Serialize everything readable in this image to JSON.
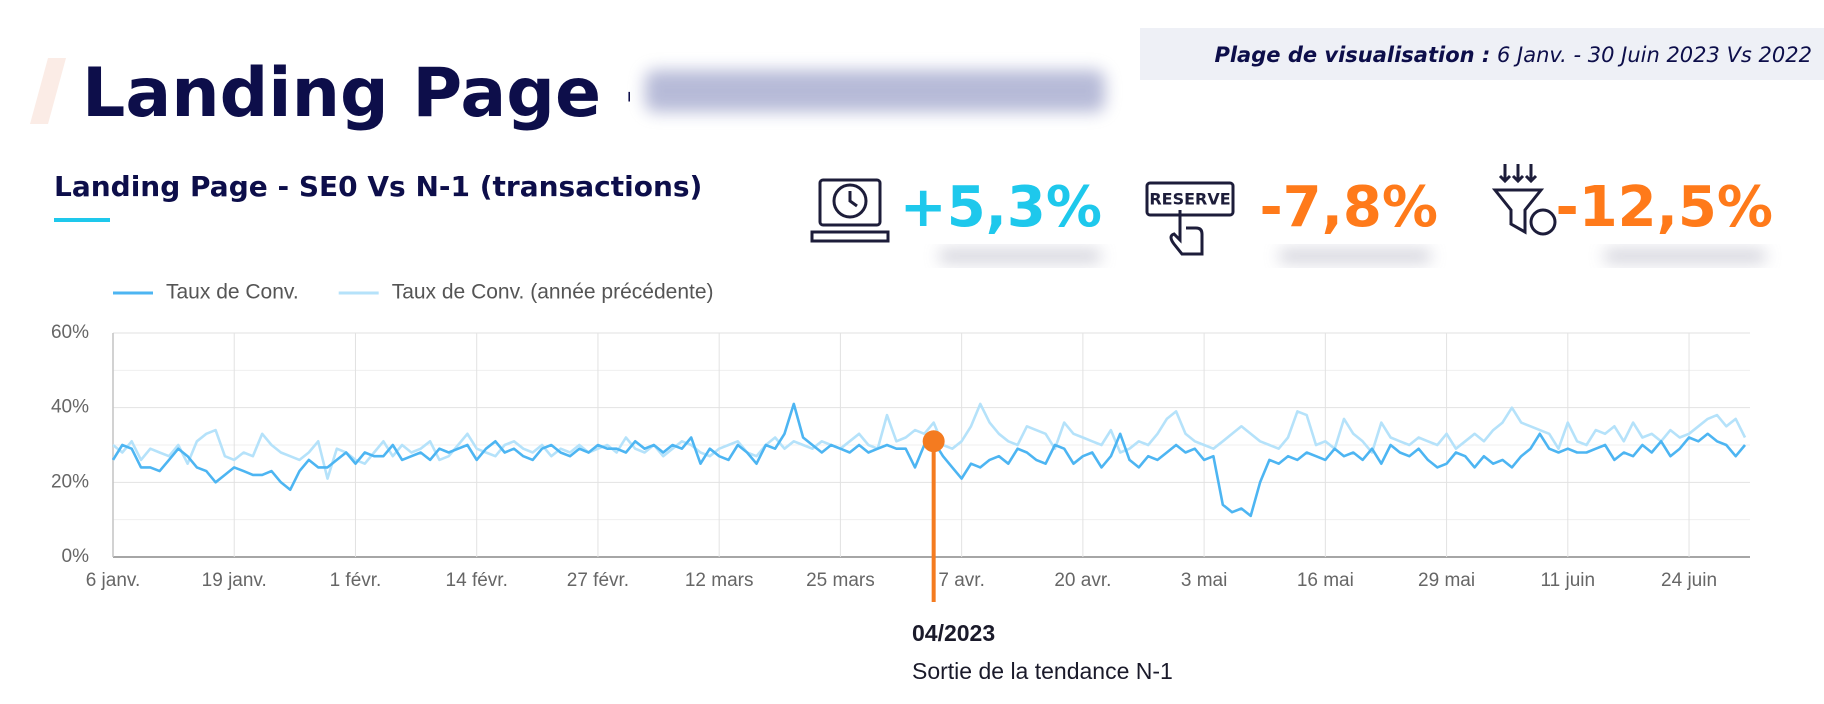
{
  "header": {
    "title": "Landing Page -",
    "range_label": "Plage de visualisation :",
    "range_value": "6 Janv. - 30 Juin 2023 Vs 2022"
  },
  "section_title": "Landing Page - SE0 Vs N-1 (transactions)",
  "kpis": [
    {
      "value": "+5,3%",
      "color": "#1ec8ec"
    },
    {
      "value": "-7,8%",
      "color": "#ff7a1a",
      "icon_text": "RESERVE"
    },
    {
      "value": "-12,5%",
      "color": "#ff7a1a"
    }
  ],
  "chart_data": {
    "type": "line",
    "grid": true,
    "legend": "top-left",
    "ylim": [
      0,
      60
    ],
    "yticks": [
      {
        "value": 0,
        "label": "0%"
      },
      {
        "value": 20,
        "label": "20%"
      },
      {
        "value": 40,
        "label": "40%"
      },
      {
        "value": 60,
        "label": "60%"
      }
    ],
    "categories": [
      "6 janv.",
      null,
      null,
      null,
      null,
      null,
      null,
      null,
      null,
      null,
      null,
      null,
      null,
      "19 janv.",
      null,
      null,
      null,
      null,
      null,
      null,
      null,
      null,
      null,
      null,
      null,
      null,
      "1 févr.",
      null,
      null,
      null,
      null,
      null,
      null,
      null,
      null,
      null,
      null,
      null,
      null,
      "14 févr.",
      null,
      null,
      null,
      null,
      null,
      null,
      null,
      null,
      null,
      null,
      null,
      null,
      "27 févr.",
      null,
      null,
      null,
      null,
      null,
      null,
      null,
      null,
      null,
      null,
      null,
      null,
      "12 mars",
      null,
      null,
      null,
      null,
      null,
      null,
      null,
      null,
      null,
      null,
      null,
      null,
      "25 mars",
      null,
      null,
      null,
      null,
      null,
      null,
      null,
      null,
      null,
      null,
      null,
      null,
      "7 avr.",
      null,
      null,
      null,
      null,
      null,
      null,
      null,
      null,
      null,
      null,
      null,
      null,
      "20 avr.",
      null,
      null,
      null,
      null,
      null,
      null,
      null,
      null,
      null,
      null,
      null,
      null,
      "3 mai",
      null,
      null,
      null,
      null,
      null,
      null,
      null,
      null,
      null,
      null,
      null,
      null,
      "16 mai",
      null,
      null,
      null,
      null,
      null,
      null,
      null,
      null,
      null,
      null,
      null,
      null,
      "29 mai",
      null,
      null,
      null,
      null,
      null,
      null,
      null,
      null,
      null,
      null,
      null,
      null,
      "11 juin",
      null,
      null,
      null,
      null,
      null,
      null,
      null,
      null,
      null,
      null,
      null,
      null,
      "24 juin",
      null,
      null,
      null,
      null,
      null,
      null
    ],
    "series": [
      {
        "name": "Taux de Conv.",
        "color": "#4db5f2",
        "values": [
          26,
          30,
          29,
          24,
          24,
          23,
          26,
          29,
          27,
          24,
          23,
          20,
          22,
          24,
          23,
          22,
          22,
          23,
          20,
          18,
          23,
          26,
          24,
          24,
          26,
          28,
          25,
          28,
          27,
          27,
          30,
          26,
          27,
          28,
          26,
          29,
          28,
          29,
          30,
          26,
          29,
          31,
          28,
          29,
          27,
          26,
          29,
          30,
          28,
          27,
          29,
          28,
          30,
          29,
          29,
          28,
          31,
          29,
          30,
          28,
          30,
          29,
          32,
          25,
          29,
          27,
          26,
          30,
          28,
          25,
          30,
          29,
          33,
          41,
          32,
          30,
          28,
          30,
          29,
          28,
          30,
          28,
          29,
          30,
          29,
          29,
          24,
          30,
          31,
          27,
          24,
          21,
          25,
          24,
          26,
          27,
          25,
          29,
          28,
          26,
          25,
          30,
          29,
          25,
          27,
          28,
          24,
          27,
          33,
          26,
          24,
          27,
          26,
          28,
          30,
          28,
          29,
          26,
          27,
          14,
          12,
          13,
          11,
          20,
          26,
          25,
          27,
          26,
          28,
          27,
          26,
          29,
          27,
          28,
          26,
          29,
          25,
          30,
          28,
          27,
          29,
          26,
          24,
          25,
          28,
          27,
          24,
          27,
          25,
          26,
          24,
          27,
          29,
          33,
          29,
          28,
          29,
          28,
          28,
          29,
          30,
          26,
          28,
          27,
          30,
          28,
          31,
          27,
          29,
          32,
          31,
          33,
          31,
          30,
          27,
          30
        ]
      },
      {
        "name": "Taux de Conv. (année précédente)",
        "color": "#b5e2fa",
        "values": [
          30,
          28,
          31,
          26,
          29,
          28,
          27,
          30,
          25,
          31,
          33,
          34,
          27,
          26,
          28,
          27,
          33,
          30,
          28,
          27,
          26,
          28,
          31,
          21,
          29,
          28,
          26,
          25,
          28,
          31,
          27,
          30,
          28,
          29,
          31,
          26,
          27,
          30,
          33,
          29,
          28,
          27,
          30,
          31,
          29,
          28,
          30,
          27,
          29,
          28,
          30,
          28,
          29,
          30,
          28,
          32,
          29,
          28,
          30,
          27,
          29,
          31,
          30,
          28,
          27,
          29,
          30,
          31,
          28,
          27,
          30,
          32,
          29,
          31,
          30,
          29,
          31,
          30,
          29,
          31,
          33,
          30,
          29,
          38,
          31,
          32,
          34,
          33,
          36,
          30,
          29,
          31,
          35,
          41,
          36,
          33,
          31,
          30,
          35,
          34,
          33,
          29,
          36,
          33,
          32,
          31,
          30,
          34,
          28,
          29,
          31,
          30,
          33,
          37,
          39,
          33,
          31,
          30,
          29,
          31,
          33,
          35,
          33,
          31,
          30,
          29,
          32,
          39,
          38,
          30,
          31,
          29,
          37,
          33,
          31,
          28,
          36,
          32,
          31,
          30,
          32,
          31,
          30,
          33,
          29,
          31,
          33,
          31,
          34,
          36,
          40,
          36,
          35,
          34,
          33,
          29,
          36,
          31,
          30,
          34,
          33,
          35,
          31,
          36,
          32,
          33,
          31,
          34,
          32,
          33,
          35,
          37,
          38,
          35,
          37,
          32
        ]
      }
    ],
    "annotation": {
      "index": 88,
      "color": "#f47b20",
      "label": "04/2023",
      "text": "Sortie de la tendance N-1"
    }
  }
}
